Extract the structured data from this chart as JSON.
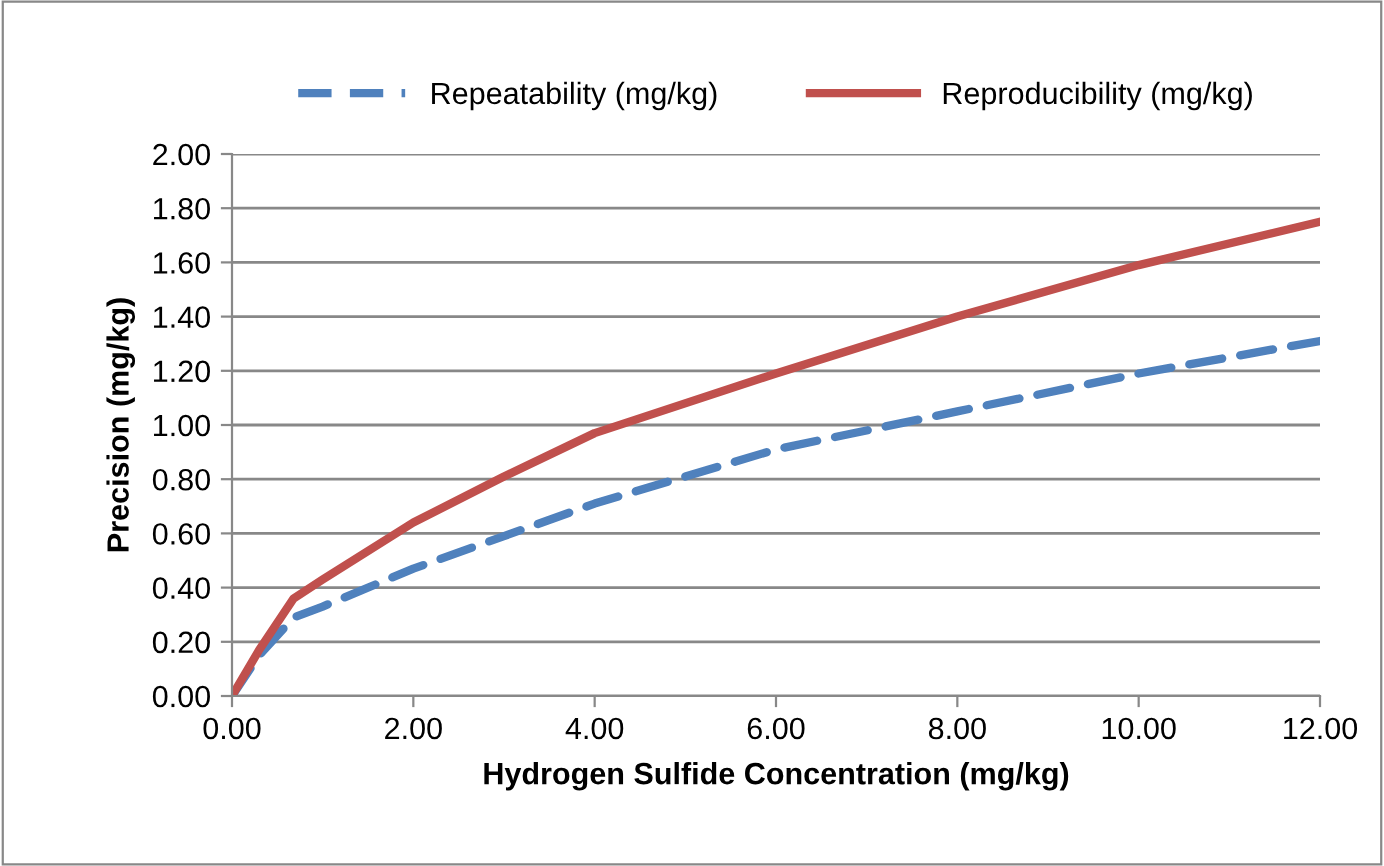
{
  "chart_data": {
    "type": "line",
    "xlabel": "Hydrogen Sulfide Concentration (mg/kg)",
    "ylabel": "Precision (mg/kg)",
    "xlim": [
      0,
      12
    ],
    "ylim": [
      0,
      2
    ],
    "xticks": [
      {
        "value": 0,
        "label": "0.00"
      },
      {
        "value": 2,
        "label": "2.00"
      },
      {
        "value": 4,
        "label": "4.00"
      },
      {
        "value": 6,
        "label": "6.00"
      },
      {
        "value": 8,
        "label": "8.00"
      },
      {
        "value": 10,
        "label": "10.00"
      },
      {
        "value": 12,
        "label": "12.00"
      }
    ],
    "yticks": [
      {
        "value": 0,
        "label": "0.00"
      },
      {
        "value": 0.2,
        "label": "0.20"
      },
      {
        "value": 0.4,
        "label": "0.40"
      },
      {
        "value": 0.6,
        "label": "0.60"
      },
      {
        "value": 0.8,
        "label": "0.80"
      },
      {
        "value": 1.0,
        "label": "1.00"
      },
      {
        "value": 1.2,
        "label": "1.20"
      },
      {
        "value": 1.4,
        "label": "1.40"
      },
      {
        "value": 1.6,
        "label": "1.60"
      },
      {
        "value": 1.8,
        "label": "1.80"
      },
      {
        "value": 2.0,
        "label": "2.00"
      }
    ],
    "grid": "y",
    "legend": "top",
    "marker": "none",
    "series": [
      {
        "name": "Repeatability (mg/kg)",
        "color": "#4f81bd",
        "line_style": "dashed",
        "x": [
          0,
          0.3,
          0.68,
          1,
          2,
          3,
          4,
          6,
          8,
          10,
          12
        ],
        "values": [
          0,
          0.15,
          0.29,
          0.33,
          0.47,
          0.59,
          0.71,
          0.91,
          1.05,
          1.19,
          1.31
        ]
      },
      {
        "name": "Reproducibility (mg/kg)",
        "color": "#c0504d",
        "line_style": "solid",
        "x": [
          0,
          0.3,
          0.68,
          1,
          2,
          3,
          4,
          6,
          8,
          10,
          12
        ],
        "values": [
          0,
          0.17,
          0.36,
          0.43,
          0.64,
          0.81,
          0.97,
          1.19,
          1.4,
          1.59,
          1.75
        ]
      }
    ]
  }
}
